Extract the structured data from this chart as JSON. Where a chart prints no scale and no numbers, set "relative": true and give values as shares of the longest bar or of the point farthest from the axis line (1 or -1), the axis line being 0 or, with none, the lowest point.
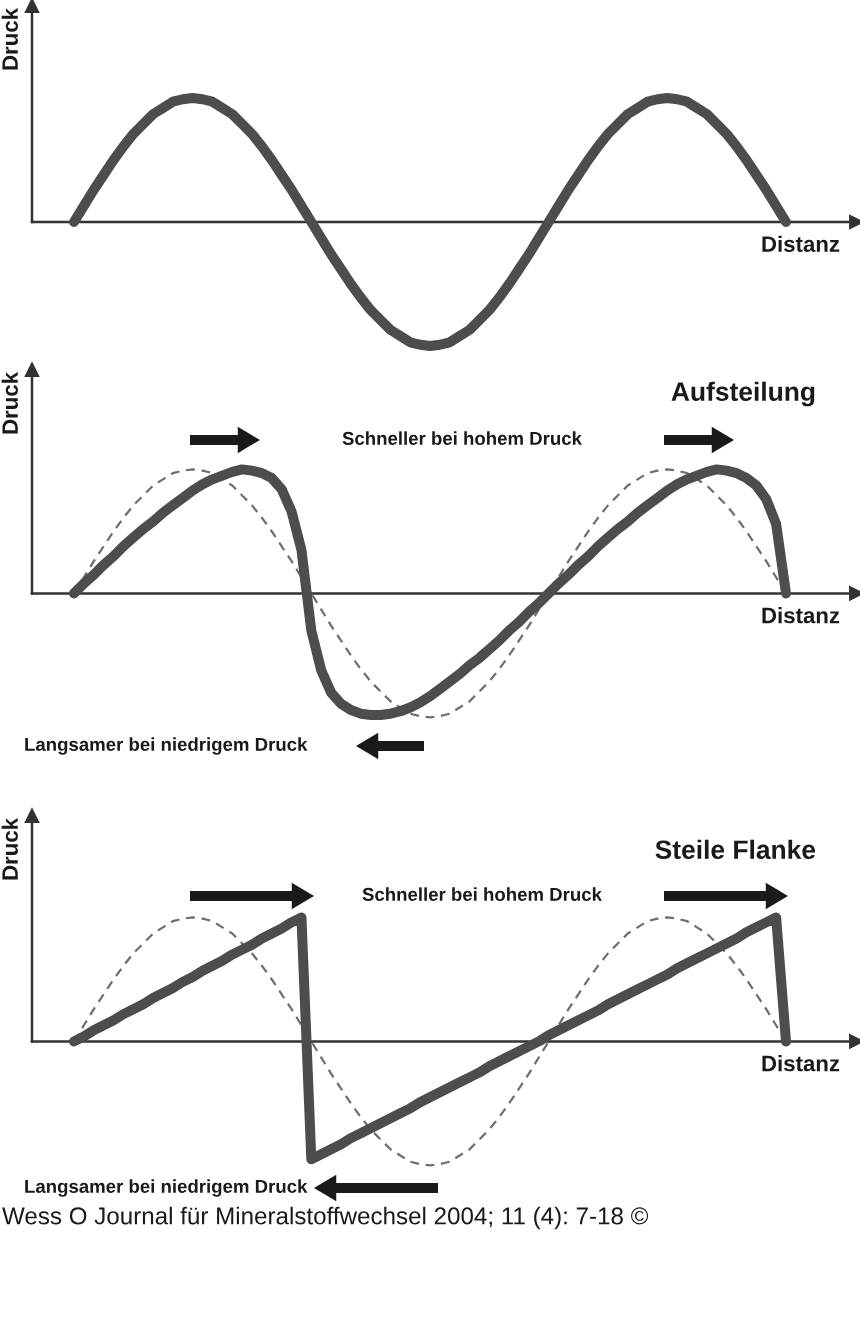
{
  "chart_data": [
    {
      "type": "line",
      "relative": true,
      "xlabel": "Distanz",
      "ylabel": "Druck",
      "categories": [
        null,
        null,
        null,
        null,
        null,
        null,
        null,
        null,
        null,
        null,
        null,
        null,
        null,
        null,
        null,
        null,
        null,
        null,
        null,
        null,
        null,
        null,
        null,
        null,
        null,
        null,
        null,
        null,
        null,
        null,
        null,
        null,
        null,
        null,
        null,
        null,
        null,
        null,
        null,
        null,
        null,
        null,
        null,
        null,
        null,
        null,
        null,
        null,
        null,
        null,
        null,
        null,
        null,
        null,
        null,
        null,
        null,
        null,
        null,
        null,
        null,
        null,
        null,
        null,
        null,
        null,
        null,
        null,
        null,
        null,
        null,
        null,
        null
      ],
      "series": [
        {
          "color": "#4d4d4d",
          "values": [
            0,
            0.13,
            0.26,
            0.38,
            0.5,
            0.61,
            0.71,
            0.79,
            0.87,
            0.92,
            0.97,
            0.99,
            1,
            0.99,
            0.97,
            0.92,
            0.87,
            0.79,
            0.71,
            0.61,
            0.5,
            0.38,
            0.26,
            0.13,
            0,
            -0.13,
            -0.26,
            -0.38,
            -0.5,
            -0.61,
            -0.71,
            -0.79,
            -0.87,
            -0.92,
            -0.97,
            -0.99,
            -1,
            -0.99,
            -0.97,
            -0.92,
            -0.87,
            -0.79,
            -0.71,
            -0.61,
            -0.5,
            -0.38,
            -0.26,
            -0.13,
            0,
            0.13,
            0.26,
            0.38,
            0.5,
            0.61,
            0.71,
            0.79,
            0.87,
            0.92,
            0.97,
            0.99,
            1,
            0.99,
            0.97,
            0.92,
            0.87,
            0.79,
            0.71,
            0.61,
            0.5,
            0.38,
            0.26,
            0.13,
            0
          ]
        }
      ]
    },
    {
      "type": "line",
      "relative": true,
      "title": "Aufsteilung",
      "xlabel": "Distanz",
      "ylabel": "Druck",
      "annotations": [
        "Schneller bei hohem Druck",
        "Langsamer bei niedrigem Druck"
      ],
      "categories": [
        null,
        null,
        null,
        null,
        null,
        null,
        null,
        null,
        null,
        null,
        null,
        null,
        null,
        null,
        null,
        null,
        null,
        null,
        null,
        null,
        null,
        null,
        null,
        null,
        null,
        null,
        null,
        null,
        null,
        null,
        null,
        null,
        null,
        null,
        null,
        null,
        null,
        null,
        null,
        null,
        null,
        null,
        null,
        null,
        null,
        null,
        null,
        null,
        null,
        null,
        null,
        null,
        null,
        null,
        null,
        null,
        null,
        null,
        null,
        null,
        null,
        null,
        null,
        null,
        null,
        null,
        null,
        null,
        null,
        null,
        null,
        null,
        null
      ],
      "series": [
        {
          "color": "#6e6e6e",
          "line_style": "dashed",
          "values": [
            0,
            0.13,
            0.26,
            0.38,
            0.5,
            0.61,
            0.71,
            0.79,
            0.87,
            0.92,
            0.97,
            0.99,
            1,
            0.99,
            0.97,
            0.92,
            0.87,
            0.79,
            0.71,
            0.61,
            0.5,
            0.38,
            0.26,
            0.13,
            0,
            -0.13,
            -0.26,
            -0.38,
            -0.5,
            -0.61,
            -0.71,
            -0.79,
            -0.87,
            -0.92,
            -0.97,
            -0.99,
            -1,
            -0.99,
            -0.97,
            -0.92,
            -0.87,
            -0.79,
            -0.71,
            -0.61,
            -0.5,
            -0.38,
            -0.26,
            -0.13,
            0,
            0.13,
            0.26,
            0.38,
            0.5,
            0.61,
            0.71,
            0.79,
            0.87,
            0.92,
            0.97,
            0.99,
            1,
            0.99,
            0.97,
            0.92,
            0.87,
            0.79,
            0.71,
            0.61,
            0.5,
            0.38,
            0.26,
            0.13,
            0
          ]
        },
        {
          "color": "#4d4d4d",
          "values": [
            0,
            0.08,
            0.15,
            0.23,
            0.3,
            0.38,
            0.45,
            0.52,
            0.58,
            0.65,
            0.71,
            0.77,
            0.83,
            0.88,
            0.92,
            0.95,
            0.98,
            1,
            0.99,
            0.97,
            0.93,
            0.84,
            0.66,
            0.35,
            -0.3,
            -0.62,
            -0.8,
            -0.89,
            -0.94,
            -0.97,
            -0.98,
            -0.98,
            -0.97,
            -0.95,
            -0.92,
            -0.88,
            -0.83,
            -0.77,
            -0.71,
            -0.65,
            -0.58,
            -0.52,
            -0.45,
            -0.38,
            -0.3,
            -0.23,
            -0.15,
            -0.08,
            0,
            0.08,
            0.15,
            0.23,
            0.3,
            0.38,
            0.45,
            0.52,
            0.58,
            0.65,
            0.71,
            0.77,
            0.83,
            0.88,
            0.92,
            0.95,
            0.98,
            1,
            0.99,
            0.97,
            0.93,
            0.87,
            0.76,
            0.56,
            0
          ]
        }
      ]
    },
    {
      "type": "line",
      "relative": true,
      "title": "Steile Flanke",
      "xlabel": "Distanz",
      "ylabel": "Druck",
      "annotations": [
        "Schneller bei hohem Druck",
        "Langsamer bei niedrigem Druck",
        "Wess O Journal für Mineralstoffwechsel 2004; 11 (4): 7-18 ©"
      ],
      "categories": [
        null,
        null,
        null,
        null,
        null,
        null,
        null,
        null,
        null,
        null,
        null,
        null,
        null,
        null,
        null,
        null,
        null,
        null,
        null,
        null,
        null,
        null,
        null,
        null,
        null,
        null,
        null,
        null,
        null,
        null,
        null,
        null,
        null,
        null,
        null,
        null,
        null,
        null,
        null,
        null,
        null,
        null,
        null,
        null,
        null,
        null,
        null,
        null,
        null,
        null,
        null,
        null,
        null,
        null,
        null,
        null,
        null,
        null,
        null,
        null,
        null,
        null,
        null,
        null,
        null,
        null,
        null,
        null,
        null,
        null,
        null,
        null,
        null
      ],
      "series": [
        {
          "color": "#6e6e6e",
          "line_style": "dashed",
          "values": [
            0,
            0.13,
            0.26,
            0.38,
            0.5,
            0.61,
            0.71,
            0.79,
            0.87,
            0.92,
            0.97,
            0.99,
            1,
            0.99,
            0.97,
            0.92,
            0.87,
            0.79,
            0.71,
            0.61,
            0.5,
            0.38,
            0.26,
            0.13,
            0,
            -0.13,
            -0.26,
            -0.38,
            -0.5,
            -0.61,
            -0.71,
            -0.79,
            -0.87,
            -0.92,
            -0.97,
            -0.99,
            -1,
            -0.99,
            -0.97,
            -0.92,
            -0.87,
            -0.79,
            -0.71,
            -0.61,
            -0.5,
            -0.38,
            -0.26,
            -0.13,
            0,
            0.13,
            0.26,
            0.38,
            0.5,
            0.61,
            0.71,
            0.79,
            0.87,
            0.92,
            0.97,
            0.99,
            1,
            0.99,
            0.97,
            0.92,
            0.87,
            0.79,
            0.71,
            0.61,
            0.5,
            0.38,
            0.26,
            0.13,
            0
          ]
        },
        {
          "color": "#4d4d4d",
          "values": [
            0,
            0.04,
            0.09,
            0.13,
            0.17,
            0.22,
            0.26,
            0.3,
            0.35,
            0.39,
            0.43,
            0.48,
            0.52,
            0.57,
            0.61,
            0.65,
            0.7,
            0.74,
            0.78,
            0.83,
            0.87,
            0.91,
            0.96,
            1,
            -0.95,
            -0.91,
            -0.87,
            -0.83,
            -0.78,
            -0.74,
            -0.7,
            -0.66,
            -0.62,
            -0.58,
            -0.54,
            -0.49,
            -0.45,
            -0.41,
            -0.37,
            -0.33,
            -0.29,
            -0.25,
            -0.2,
            -0.16,
            -0.12,
            -0.08,
            -0.04,
            0,
            0.05,
            0.09,
            0.13,
            0.17,
            0.21,
            0.25,
            0.3,
            0.34,
            0.38,
            0.42,
            0.46,
            0.5,
            0.54,
            0.59,
            0.63,
            0.67,
            0.71,
            0.75,
            0.79,
            0.83,
            0.88,
            0.92,
            0.96,
            1,
            0
          ]
        }
      ]
    }
  ]
}
